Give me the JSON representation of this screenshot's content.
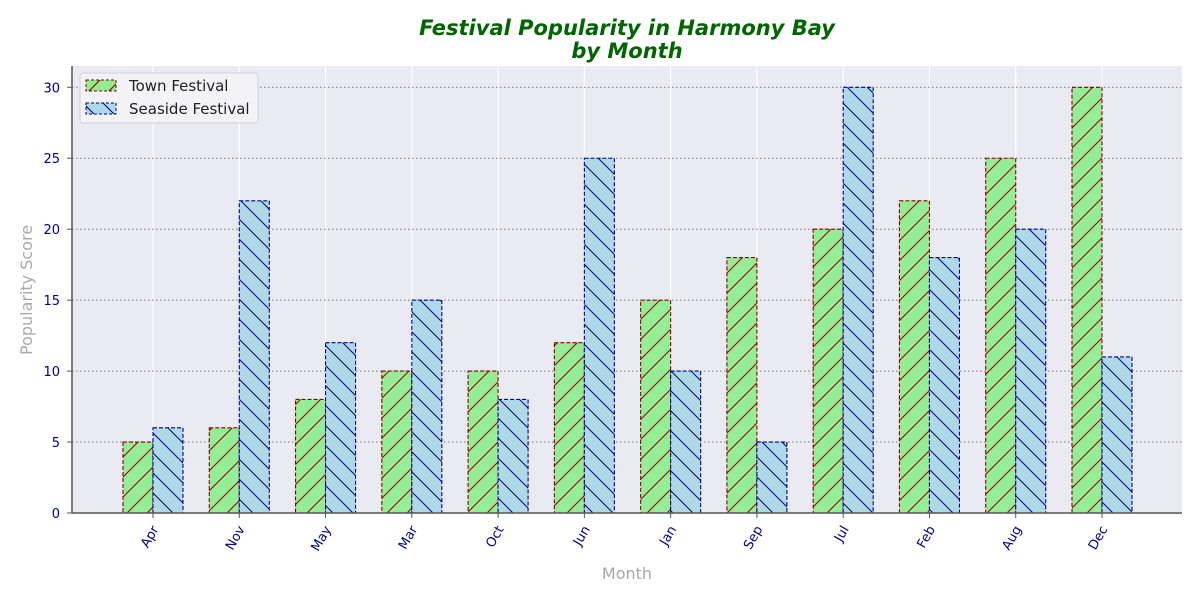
{
  "chart_data": {
    "type": "bar",
    "title_line1": "Festival Popularity in Harmony Bay",
    "title_line2": "by Month",
    "xlabel": "Month",
    "ylabel": "Popularity Score",
    "categories": [
      "Apr",
      "Nov",
      "May",
      "Mar",
      "Oct",
      "Jun",
      "Jan",
      "Sep",
      "Jul",
      "Feb",
      "Aug",
      "Dec"
    ],
    "series": [
      {
        "name": "Town Festival",
        "values": [
          5,
          6,
          8,
          10,
          10,
          12,
          15,
          18,
          20,
          22,
          25,
          30
        ],
        "fill": "#90ee90",
        "edge": "#8b0000",
        "hatch": "/"
      },
      {
        "name": "Seaside Festival",
        "values": [
          6,
          22,
          12,
          15,
          8,
          25,
          10,
          5,
          30,
          18,
          20,
          11
        ],
        "fill": "#add8e6",
        "edge": "#00008b",
        "hatch": "\\"
      }
    ],
    "ylim": [
      0,
      31.5
    ],
    "yticks": [
      0,
      5,
      10,
      15,
      20,
      25,
      30
    ],
    "grid": "horizontal dotted",
    "legend_position": "top-left",
    "colors": {
      "title": "#006400",
      "axis_label": "#a9a9a9",
      "tick_label": "#00008b",
      "plot_background": "#eaeaf2"
    }
  }
}
